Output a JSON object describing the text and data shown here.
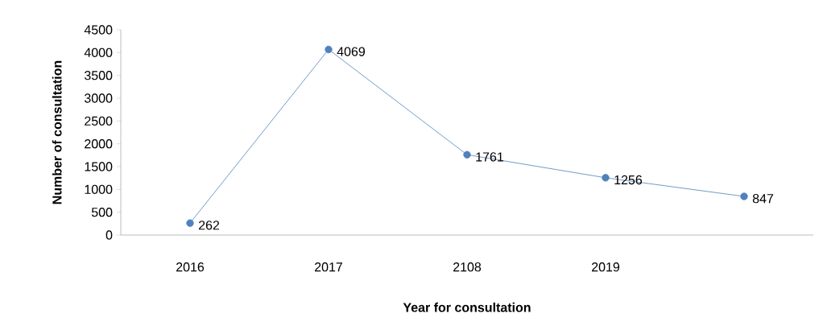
{
  "chart_data": {
    "type": "line",
    "xlabel": "Year for consultation",
    "ylabel": "Number of consultation",
    "categories": [
      "2016",
      "2017",
      "2108",
      "2019",
      null
    ],
    "series": [
      {
        "color": "#4f81bd",
        "values": [
          262,
          4069,
          1761,
          1256,
          847
        ]
      }
    ],
    "ylim": [
      0,
      4500
    ],
    "yticks": [
      0,
      500,
      1000,
      1500,
      2000,
      2500,
      3000,
      3500,
      4000,
      4500
    ],
    "data_labels": true,
    "marker": "circle",
    "line_style": "solid"
  }
}
